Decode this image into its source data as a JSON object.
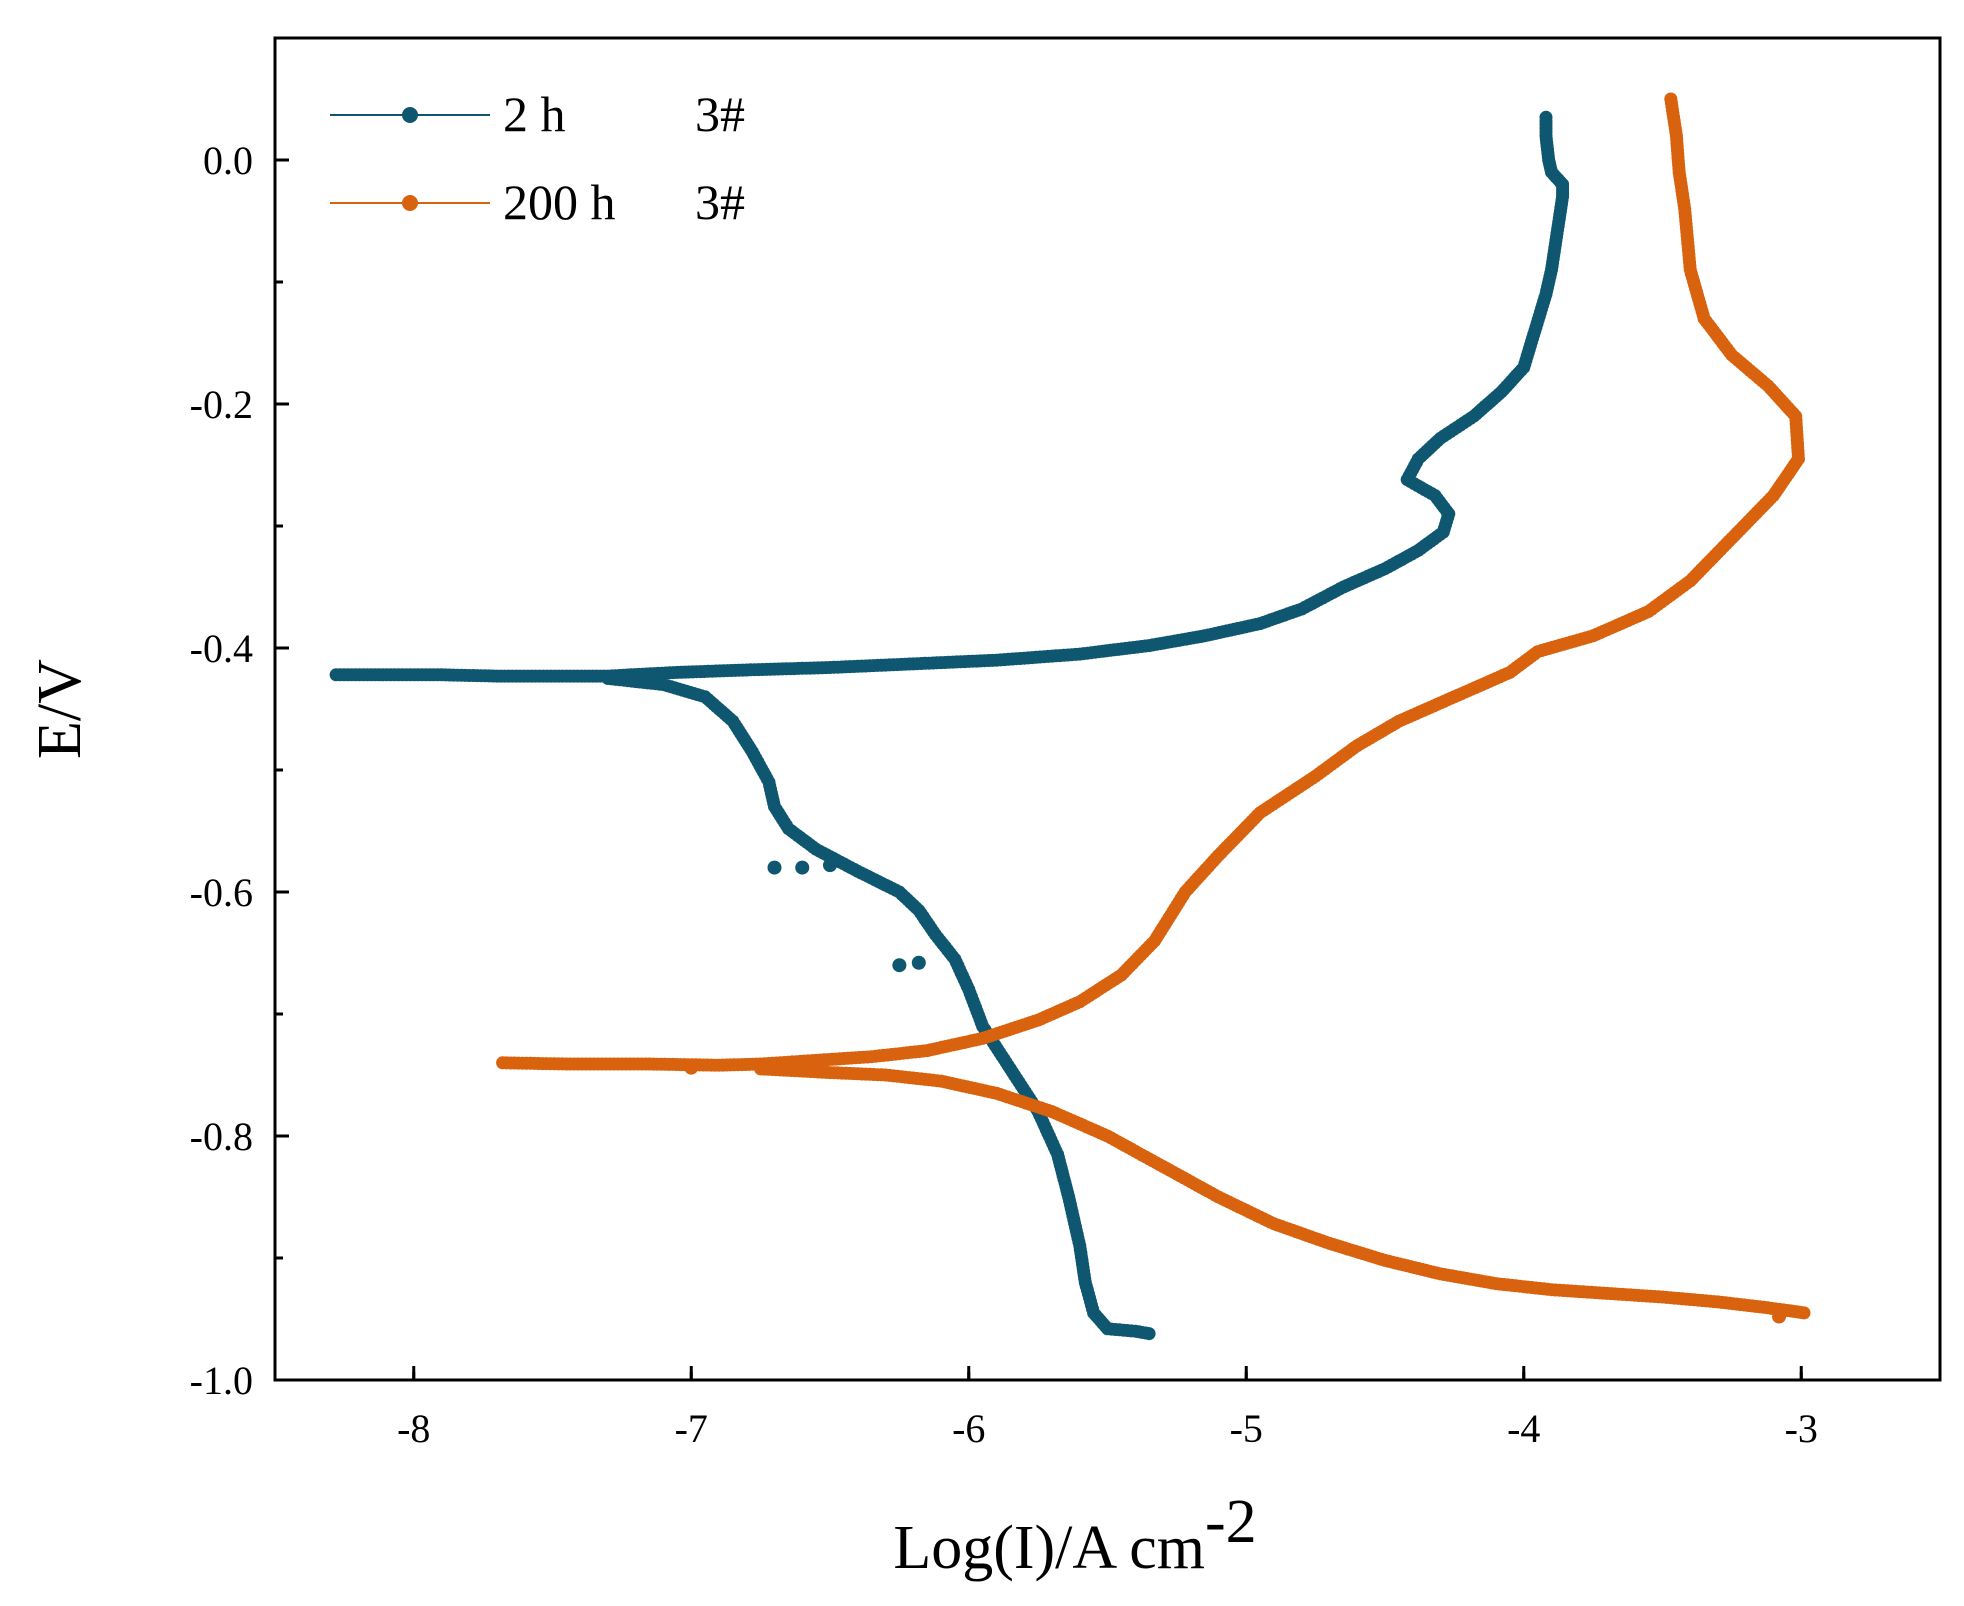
{
  "chart_data": {
    "type": "line",
    "title": "",
    "xlabel": "Log(I)/A cm",
    "xlabel_superscript": "-2",
    "ylabel": "E/V",
    "xlim": [
      -8.5,
      -2.5
    ],
    "ylim": [
      -1.0,
      0.1
    ],
    "xticks": [
      -8,
      -7,
      -6,
      -5,
      -4,
      -3
    ],
    "xtick_labels": [
      "-8",
      "-7",
      "-6",
      "-5",
      "-4",
      "-3"
    ],
    "yticks": [
      0.0,
      -0.2,
      -0.4,
      -0.6,
      -0.8,
      -1.0
    ],
    "ytick_labels": [
      "0.0",
      "-0.2",
      "-0.4",
      "-0.6",
      "-0.8",
      "-1.0"
    ],
    "grid": false,
    "legend_position": "top-left",
    "series": [
      {
        "name": "2 h",
        "sample": "3#",
        "color": "#0f5770",
        "points": [
          [
            -8.28,
            -0.422
          ],
          [
            -7.9,
            -0.422
          ],
          [
            -7.7,
            -0.423
          ],
          [
            -7.45,
            -0.423
          ],
          [
            -7.3,
            -0.423
          ],
          [
            -7.05,
            -0.42
          ],
          [
            -6.8,
            -0.418
          ],
          [
            -6.5,
            -0.416
          ],
          [
            -6.2,
            -0.413
          ],
          [
            -5.9,
            -0.41
          ],
          [
            -5.6,
            -0.405
          ],
          [
            -5.35,
            -0.398
          ],
          [
            -5.15,
            -0.39
          ],
          [
            -4.95,
            -0.38
          ],
          [
            -4.8,
            -0.368
          ],
          [
            -4.65,
            -0.35
          ],
          [
            -4.5,
            -0.335
          ],
          [
            -4.38,
            -0.32
          ],
          [
            -4.29,
            -0.305
          ],
          [
            -4.27,
            -0.29
          ],
          [
            -4.32,
            -0.275
          ],
          [
            -4.42,
            -0.262
          ],
          [
            -4.38,
            -0.245
          ],
          [
            -4.3,
            -0.228
          ],
          [
            -4.18,
            -0.21
          ],
          [
            -4.08,
            -0.19
          ],
          [
            -4.0,
            -0.17
          ],
          [
            -3.96,
            -0.14
          ],
          [
            -3.92,
            -0.11
          ],
          [
            -3.9,
            -0.09
          ],
          [
            -3.88,
            -0.06
          ],
          [
            -3.86,
            -0.03
          ],
          [
            -3.86,
            -0.02
          ],
          [
            -3.9,
            -0.01
          ],
          [
            -3.91,
            0.0
          ],
          [
            -3.92,
            0.02
          ],
          [
            -3.92,
            0.035
          ]
        ],
        "cathodic_points": [
          [
            -7.3,
            -0.425
          ],
          [
            -7.1,
            -0.43
          ],
          [
            -6.95,
            -0.44
          ],
          [
            -6.85,
            -0.46
          ],
          [
            -6.78,
            -0.485
          ],
          [
            -6.72,
            -0.51
          ],
          [
            -6.7,
            -0.53
          ],
          [
            -6.65,
            -0.548
          ],
          [
            -6.55,
            -0.565
          ],
          [
            -6.4,
            -0.583
          ],
          [
            -6.25,
            -0.6
          ],
          [
            -6.18,
            -0.615
          ],
          [
            -6.12,
            -0.635
          ],
          [
            -6.05,
            -0.655
          ],
          [
            -6.0,
            -0.68
          ],
          [
            -5.95,
            -0.71
          ],
          [
            -5.85,
            -0.745
          ],
          [
            -5.75,
            -0.78
          ],
          [
            -5.68,
            -0.815
          ],
          [
            -5.64,
            -0.85
          ],
          [
            -5.6,
            -0.89
          ],
          [
            -5.58,
            -0.92
          ],
          [
            -5.55,
            -0.945
          ],
          [
            -5.5,
            -0.958
          ],
          [
            -5.4,
            -0.96
          ],
          [
            -5.35,
            -0.962
          ]
        ],
        "outliers": [
          [
            -6.7,
            -0.58
          ],
          [
            -6.6,
            -0.58
          ],
          [
            -6.5,
            -0.578
          ],
          [
            -6.25,
            -0.66
          ],
          [
            -6.18,
            -0.658
          ]
        ]
      },
      {
        "name": "200 h",
        "sample": "3#",
        "color": "#d9620e",
        "points": [
          [
            -7.68,
            -0.74
          ],
          [
            -7.45,
            -0.741
          ],
          [
            -7.15,
            -0.741
          ],
          [
            -6.9,
            -0.742
          ],
          [
            -6.75,
            -0.741
          ],
          [
            -6.55,
            -0.738
          ],
          [
            -6.35,
            -0.735
          ],
          [
            -6.15,
            -0.73
          ],
          [
            -5.95,
            -0.72
          ],
          [
            -5.75,
            -0.705
          ],
          [
            -5.6,
            -0.69
          ],
          [
            -5.45,
            -0.668
          ],
          [
            -5.33,
            -0.64
          ],
          [
            -5.22,
            -0.6
          ],
          [
            -5.1,
            -0.57
          ],
          [
            -4.95,
            -0.535
          ],
          [
            -4.75,
            -0.505
          ],
          [
            -4.6,
            -0.48
          ],
          [
            -4.45,
            -0.46
          ],
          [
            -4.25,
            -0.44
          ],
          [
            -4.05,
            -0.42
          ],
          [
            -3.95,
            -0.403
          ],
          [
            -3.75,
            -0.39
          ],
          [
            -3.55,
            -0.37
          ],
          [
            -3.4,
            -0.345
          ],
          [
            -3.25,
            -0.31
          ],
          [
            -3.1,
            -0.275
          ],
          [
            -3.01,
            -0.245
          ],
          [
            -3.02,
            -0.21
          ],
          [
            -3.12,
            -0.185
          ],
          [
            -3.25,
            -0.16
          ],
          [
            -3.35,
            -0.13
          ],
          [
            -3.4,
            -0.09
          ],
          [
            -3.42,
            -0.04
          ],
          [
            -3.44,
            -0.01
          ],
          [
            -3.45,
            0.02
          ],
          [
            -3.47,
            0.05
          ]
        ],
        "cathodic_points": [
          [
            -6.75,
            -0.745
          ],
          [
            -6.5,
            -0.748
          ],
          [
            -6.3,
            -0.75
          ],
          [
            -6.1,
            -0.755
          ],
          [
            -5.9,
            -0.765
          ],
          [
            -5.7,
            -0.78
          ],
          [
            -5.5,
            -0.8
          ],
          [
            -5.3,
            -0.825
          ],
          [
            -5.1,
            -0.85
          ],
          [
            -4.9,
            -0.872
          ],
          [
            -4.7,
            -0.888
          ],
          [
            -4.5,
            -0.902
          ],
          [
            -4.3,
            -0.913
          ],
          [
            -4.1,
            -0.921
          ],
          [
            -3.9,
            -0.926
          ],
          [
            -3.7,
            -0.929
          ],
          [
            -3.5,
            -0.932
          ],
          [
            -3.3,
            -0.936
          ],
          [
            -3.15,
            -0.94
          ],
          [
            -3.05,
            -0.943
          ],
          [
            -2.99,
            -0.945
          ]
        ],
        "outliers": [
          [
            -3.08,
            -0.948
          ],
          [
            -7.0,
            -0.744
          ],
          [
            -6.6,
            -0.746
          ]
        ]
      }
    ]
  }
}
